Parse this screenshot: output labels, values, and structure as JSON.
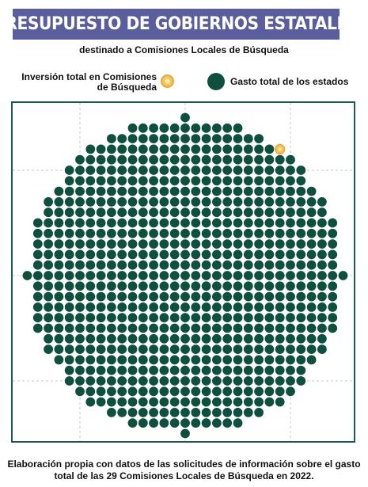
{
  "title": "PRESUPUESTO DE GOBIERNOS ESTATALES",
  "subtitle": "destinado a Comisiones Locales de Búsqueda",
  "legend": {
    "investment_line1": "Inversión total en Comisiones",
    "investment_line2": "de Búsqueda",
    "spending": "Gasto total de los estados"
  },
  "caption": {
    "line1": "Elaboración propia con datos de las solicitudes de información sobre el gasto",
    "line2": "total de las 29 Comisiones Locales de Búsqueda en 2022."
  },
  "colors": {
    "banner": "#5a5e9c",
    "spending_dot": "#0f4f3f",
    "investment_dot": "#f3c35a",
    "frame": "#1b5a4c",
    "grid": "#c8c8c8"
  },
  "icons": {
    "investment": "gold-coin-icon",
    "spending": "green-dot-icon"
  },
  "chart_data": {
    "type": "scatter",
    "title": "PRESUPUESTO DE GOBIERNOS ESTATALES",
    "subtitle": "destinado a Comisiones Locales de Búsqueda",
    "xlabel": "",
    "ylabel": "",
    "xlim": [
      -15,
      15
    ],
    "ylim": [
      -15,
      15
    ],
    "grid": true,
    "legend_position": "top",
    "series": [
      {
        "name": "Gasto total de los estados",
        "unit_count": 880
      },
      {
        "name": "Inversión total en Comisiones de Búsqueda",
        "unit_count": 1
      }
    ],
    "rows": [
      {
        "y": 15,
        "x": [
          0
        ]
      },
      {
        "y": 14,
        "x": [
          -5,
          5
        ]
      },
      {
        "y": 13,
        "x": [
          -7,
          7
        ]
      },
      {
        "y": 12,
        "x": [
          -9,
          9
        ]
      },
      {
        "y": 11,
        "x": [
          -10,
          10
        ]
      },
      {
        "y": 10,
        "x": [
          -11,
          11
        ]
      },
      {
        "y": 9,
        "x": [
          -11,
          11
        ]
      },
      {
        "y": 8,
        "x": [
          -12,
          12
        ]
      },
      {
        "y": 7,
        "x": [
          -13,
          13
        ]
      },
      {
        "y": 6,
        "x": [
          -13,
          13
        ]
      },
      {
        "y": 5,
        "x": [
          -14,
          14
        ]
      },
      {
        "y": 4,
        "x": [
          -14,
          14
        ]
      },
      {
        "y": 3,
        "x": [
          -14,
          14
        ]
      },
      {
        "y": 2,
        "x": [
          -14,
          14
        ]
      },
      {
        "y": 1,
        "x": [
          -14,
          14
        ]
      },
      {
        "y": 0,
        "x": [
          -15,
          15
        ]
      },
      {
        "y": -1,
        "x": [
          -14,
          14
        ]
      },
      {
        "y": -2,
        "x": [
          -14,
          14
        ]
      },
      {
        "y": -3,
        "x": [
          -14,
          14
        ]
      },
      {
        "y": -4,
        "x": [
          -14,
          14
        ]
      },
      {
        "y": -5,
        "x": [
          -14,
          14
        ]
      },
      {
        "y": -6,
        "x": [
          -13,
          13
        ]
      },
      {
        "y": -7,
        "x": [
          -13,
          13
        ]
      },
      {
        "y": -8,
        "x": [
          -12,
          12
        ]
      },
      {
        "y": -9,
        "x": [
          -11,
          11
        ]
      },
      {
        "y": -10,
        "x": [
          -11,
          11
        ]
      },
      {
        "y": -11,
        "x": [
          -10,
          10
        ]
      },
      {
        "y": -12,
        "x": [
          -9,
          9
        ]
      },
      {
        "y": -13,
        "x": [
          -7,
          7
        ]
      },
      {
        "y": -14,
        "x": [
          -5,
          5
        ]
      },
      {
        "y": -15,
        "x": [
          0
        ]
      }
    ],
    "highlight": {
      "x": 9,
      "y": 12
    }
  }
}
